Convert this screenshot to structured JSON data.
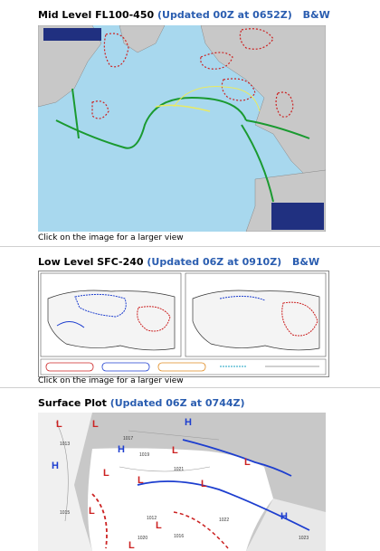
{
  "mid_level": {
    "title": "Mid Level FL100-450",
    "updated": "(Updated 00Z at 0652Z)",
    "bw_link": "B&W",
    "caption": "Click on the image for a larger view"
  },
  "low_level": {
    "title": "Low Level SFC-240",
    "updated": "(Updated 06Z at 0910Z)",
    "bw_link": "B&W",
    "caption": "Click on the image for a larger view"
  },
  "surface": {
    "title": "Surface Plot",
    "updated": "(Updated 06Z at 0744Z)",
    "pressure_labels": [
      "1013",
      "1015",
      "1017",
      "1019",
      "1021",
      "1023",
      "1020",
      "1016",
      "1012",
      "1022"
    ]
  },
  "colors": {
    "ocean": "#a8d8ee",
    "land": "#c8c8c8",
    "jet": "#1a9a30",
    "turbulence": "#cc2222",
    "link": "#2a5db0"
  }
}
